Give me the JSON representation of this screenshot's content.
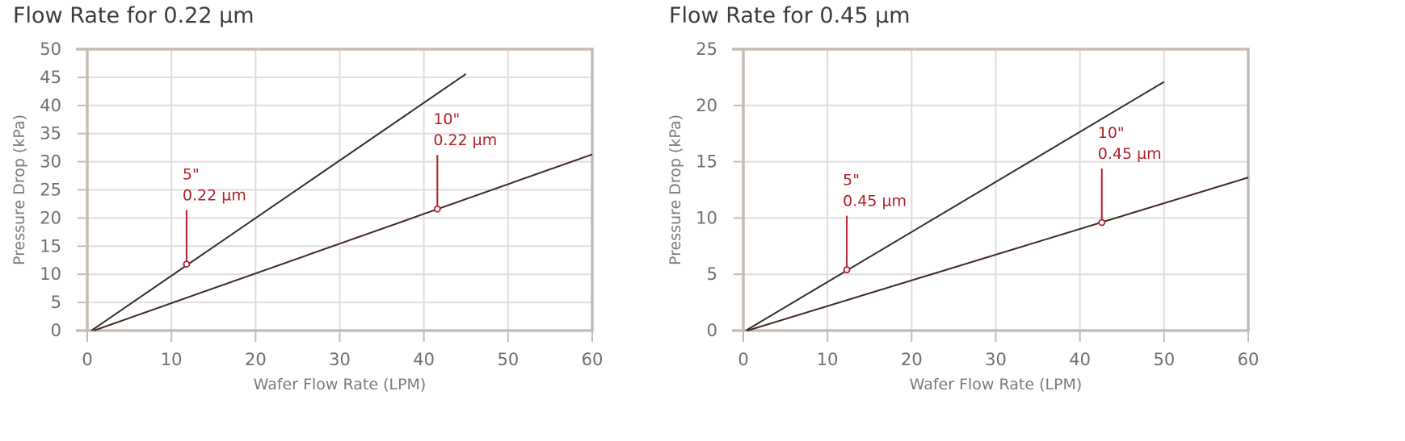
{
  "colors": {
    "frame": "#c5bcb3",
    "grid": "#dedede",
    "line_dark": "#33302e",
    "line_brown": "#3e2a22",
    "annotation": "#b3202a"
  },
  "chart_data": [
    {
      "type": "line",
      "title": "Flow Rate for 0.22 µm",
      "xlabel": "Wafer Flow Rate (LPM)",
      "ylabel": "Pressure Drop (kPa)",
      "xlim": [
        0,
        60
      ],
      "ylim": [
        0,
        50
      ],
      "x_ticks": [
        "0",
        "10",
        "20",
        "30",
        "40",
        "50",
        "60"
      ],
      "y_ticks": [
        "0",
        "5",
        "10",
        "15",
        "20",
        "25",
        "30",
        "35",
        "40",
        "45",
        "50"
      ],
      "grid": true,
      "series": [
        {
          "x": [
            0.5,
            45
          ],
          "y": [
            0,
            45.6
          ]
        },
        {
          "x": [
            0.8,
            60
          ],
          "y": [
            0,
            31.3
          ]
        }
      ],
      "annotations": [
        {
          "lines": [
            "5\"",
            "0.22 µm"
          ],
          "x": 11.8,
          "y": 11.8
        },
        {
          "lines": [
            "10\"",
            "0.22 µm"
          ],
          "x": 41.6,
          "y": 21.6
        }
      ]
    },
    {
      "type": "line",
      "title": "Flow Rate for 0.45 µm",
      "xlabel": "Wafer Flow Rate (LPM)",
      "ylabel": "Pressure Drop (kPa)",
      "xlim": [
        0,
        60
      ],
      "ylim": [
        0,
        25
      ],
      "x_ticks": [
        "0",
        "10",
        "20",
        "30",
        "40",
        "50",
        "60"
      ],
      "y_ticks": [
        "0",
        "5",
        "10",
        "15",
        "20",
        "25"
      ],
      "grid": true,
      "series": [
        {
          "x": [
            0.3,
            50
          ],
          "y": [
            0,
            22.1
          ]
        },
        {
          "x": [
            0.5,
            60
          ],
          "y": [
            0,
            13.6
          ]
        }
      ],
      "annotations": [
        {
          "lines": [
            "5\"",
            "0.45 µm"
          ],
          "x": 12.3,
          "y": 5.4
        },
        {
          "lines": [
            "10\"",
            "0.45 µm"
          ],
          "x": 42.6,
          "y": 9.6
        }
      ]
    }
  ]
}
